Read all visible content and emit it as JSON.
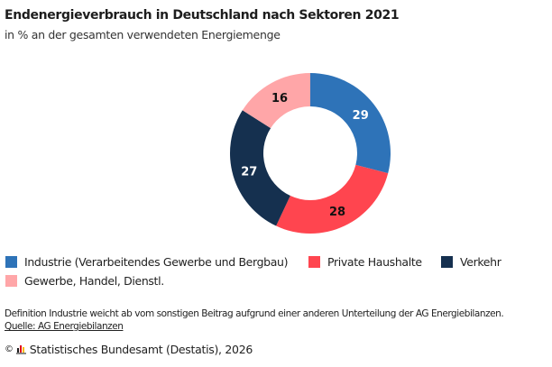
{
  "chart_data": {
    "type": "pie",
    "variant": "donut",
    "title": "Endenergieverbrauch in Deutschland nach Sektoren 2021",
    "subtitle": "in % an der gesamten verwendeten Energiemenge",
    "unit": "%",
    "categories": [
      "Industrie (Verarbeitendes Gewerbe und Bergbau)",
      "Private Haushalte",
      "Verkehr",
      "Gewerbe, Handel, Dienstl."
    ],
    "values": [
      29,
      28,
      27,
      16
    ],
    "colors": [
      "#2e73b8",
      "#ff454f",
      "#15304f",
      "#ffa6a8"
    ],
    "label_colors": [
      "#ffffff",
      "#111111",
      "#ffffff",
      "#111111"
    ],
    "start_angle": "12 o'clock, clockwise",
    "legend_position": "bottom"
  },
  "header": {
    "title": "Endenergieverbrauch in Deutschland nach Sektoren 2021",
    "subtitle": "in % an der gesamten verwendeten Energiemenge"
  },
  "footnote": {
    "note": "Definition Industrie weicht ab vom sonstigen Beitrag aufgrund einer anderen Unterteilung der AG Energiebilanzen.",
    "source_link": "Quelle: AG Energiebilanzen"
  },
  "footer": {
    "copyright_symbol": "©",
    "logo_colors": [
      "#1d1d1d",
      "#e2001a",
      "#f6bb00"
    ],
    "text": "Statistisches Bundesamt (Destatis), 2026"
  }
}
